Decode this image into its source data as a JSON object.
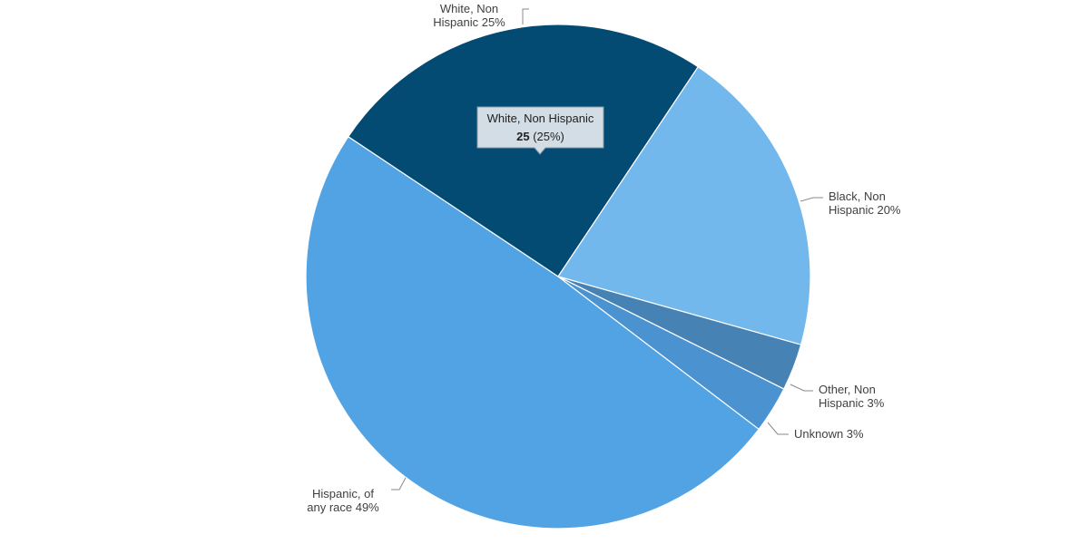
{
  "chart_data": {
    "type": "pie",
    "slices": [
      {
        "label_lines": [
          "White, Non",
          "Hispanic 25%"
        ],
        "name": "White, Non Hispanic",
        "value": 25,
        "percent": 25,
        "color": "#034b73"
      },
      {
        "label_lines": [
          "Black, Non",
          "Hispanic 20%"
        ],
        "name": "Black, Non Hispanic",
        "value": 20,
        "percent": 20,
        "color": "#72b8ec"
      },
      {
        "label_lines": [
          "Other, Non",
          "Hispanic 3%"
        ],
        "name": "Other, Non Hispanic",
        "value": 3,
        "percent": 3,
        "color": "#4682b4"
      },
      {
        "label_lines": [
          "Unknown 3%"
        ],
        "name": "Unknown",
        "value": 3,
        "percent": 3,
        "color": "#4a93d0"
      },
      {
        "label_lines": [
          "Hispanic, of",
          "any race 49%"
        ],
        "name": "Hispanic, of any race",
        "value": 49,
        "percent": 49,
        "color": "#51a3e4"
      }
    ],
    "tooltip": {
      "title": "White, Non Hispanic",
      "value": "25",
      "percent": "(25%)"
    }
  }
}
